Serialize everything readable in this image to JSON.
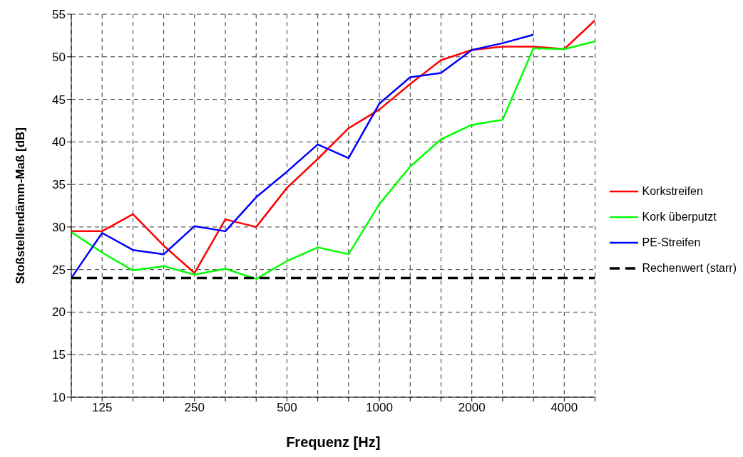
{
  "chart_data": {
    "type": "line",
    "xlabel": "Frequenz [Hz]",
    "ylabel": "Stoßstellendämm-Maß [dB]",
    "categories": [
      null,
      "125",
      null,
      null,
      "250",
      null,
      null,
      "500",
      null,
      null,
      "1000",
      null,
      null,
      "2000",
      null,
      null,
      "4000",
      null
    ],
    "series": [
      {
        "name": "Korkstreifen",
        "color": "#ff0000",
        "values": [
          29.5,
          29.5,
          31.5,
          27.8,
          24.6,
          30.9,
          30.0,
          34.6,
          38.0,
          41.6,
          43.8,
          46.8,
          49.6,
          50.8,
          51.2,
          51.2,
          50.9,
          54.3
        ]
      },
      {
        "name": "Kork überputzt",
        "color": "#00ff00",
        "values": [
          29.4,
          27.0,
          24.9,
          25.4,
          24.4,
          25.1,
          23.9,
          26.0,
          27.6,
          26.8,
          32.7,
          37.1,
          40.3,
          42.0,
          42.6,
          51.0,
          50.9,
          51.8
        ]
      },
      {
        "name": "PE-Streifen",
        "color": "#0000ff",
        "values": [
          24.0,
          29.3,
          27.3,
          26.8,
          30.1,
          29.5,
          33.5,
          36.5,
          39.7,
          38.1,
          44.5,
          47.6,
          48.1,
          50.8,
          51.6,
          52.6,
          null,
          null
        ]
      },
      {
        "name": "Rechenwert (starr)",
        "color": "#000000",
        "line_style": "dashed",
        "values": [
          24,
          24,
          24,
          24,
          24,
          24,
          24,
          24,
          24,
          24,
          24,
          24,
          24,
          24,
          24,
          24,
          24,
          24
        ]
      }
    ],
    "ylim": [
      10,
      55
    ],
    "yticks": [
      10,
      15,
      20,
      25,
      30,
      35,
      40,
      45,
      50,
      55
    ],
    "grid": true,
    "legend": "right",
    "marker": "none",
    "line_style": "solid"
  }
}
